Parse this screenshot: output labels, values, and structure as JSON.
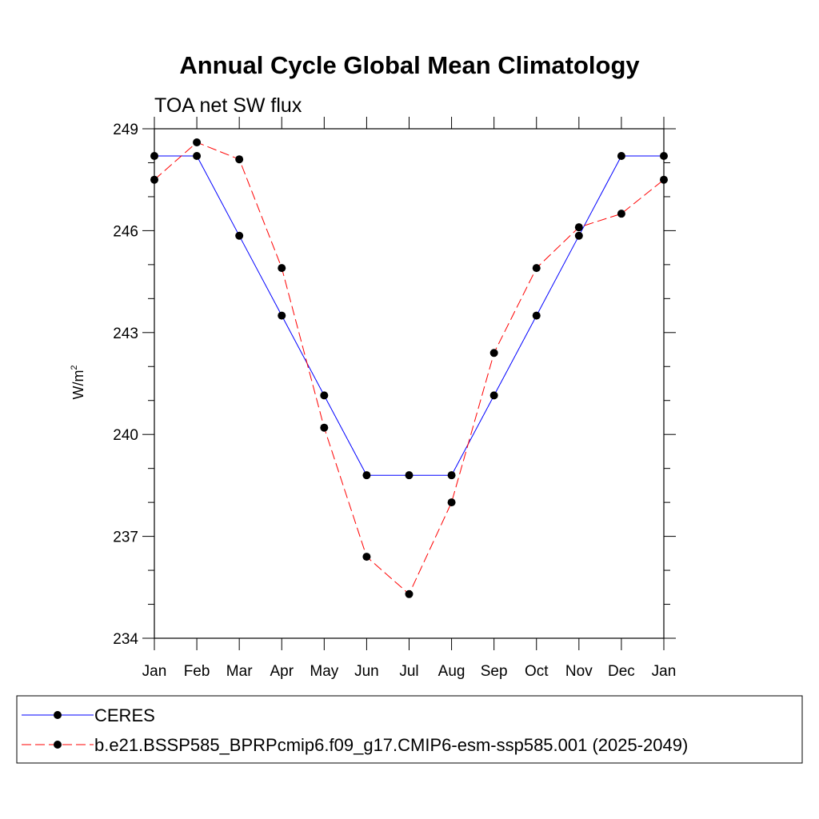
{
  "chart_data": {
    "type": "line",
    "title": "Annual Cycle Global Mean Climatology",
    "subtitle": "TOA net SW flux",
    "ylabel": "W/m",
    "ylabel_superscript": "2",
    "xlabel": "",
    "ylim": [
      234,
      249
    ],
    "yticks": [
      234,
      237,
      240,
      243,
      246,
      249
    ],
    "categories": [
      "Jan",
      "Feb",
      "Mar",
      "Apr",
      "May",
      "Jun",
      "Jul",
      "Aug",
      "Sep",
      "Oct",
      "Nov",
      "Dec",
      "Jan"
    ],
    "series": [
      {
        "name": "CERES",
        "color": "#0000ff",
        "dash": "solid",
        "values": [
          248.2,
          248.2,
          245.85,
          243.5,
          241.15,
          238.8,
          238.8,
          238.8,
          241.15,
          243.5,
          245.85,
          248.2,
          248.2
        ]
      },
      {
        "name": "b.e21.BSSP585_BPRPcmip6.f09_g17.CMIP6-esm-ssp585.001 (2025-2049)",
        "color": "#ff0000",
        "dash": "dashed",
        "values": [
          247.5,
          248.6,
          248.1,
          244.9,
          240.2,
          236.4,
          235.3,
          238.0,
          242.4,
          244.9,
          246.1,
          246.5,
          247.5
        ]
      }
    ],
    "marker_color": "#000000",
    "legend_position": "bottom"
  }
}
